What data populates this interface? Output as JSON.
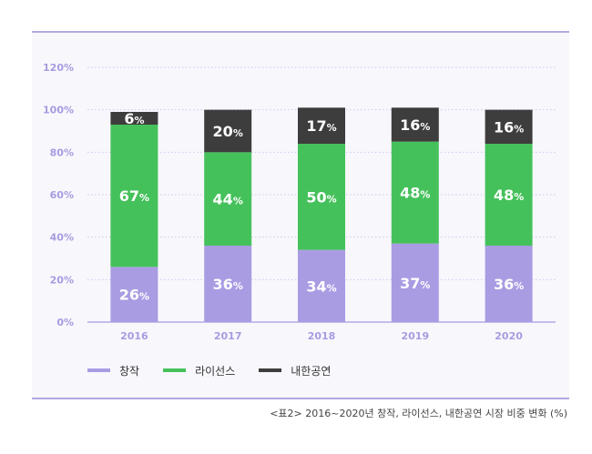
{
  "chart_data": {
    "type": "bar",
    "stacked": true,
    "categories": [
      "2016",
      "2017",
      "2018",
      "2019",
      "2020"
    ],
    "series": [
      {
        "name": "창작",
        "color": "#a99ce3",
        "values": [
          26,
          36,
          34,
          37,
          36
        ]
      },
      {
        "name": "라이선스",
        "color": "#45c15b",
        "values": [
          67,
          44,
          50,
          48,
          48
        ]
      },
      {
        "name": "내한공연",
        "color": "#3d3d3d",
        "values": [
          6,
          20,
          17,
          16,
          16
        ]
      }
    ],
    "data_labels": [
      [
        "26",
        "36",
        "34",
        "37",
        "36"
      ],
      [
        "67",
        "44",
        "50",
        "48",
        "48"
      ],
      [
        "6",
        "20",
        "17",
        "16",
        "16"
      ]
    ],
    "label_suffix": "%",
    "yticks": [
      "0%",
      "20%",
      "40%",
      "60%",
      "80%",
      "100%",
      "120%"
    ],
    "ylim": [
      0,
      120
    ],
    "grid": true,
    "legend_position": "bottom-left"
  },
  "caption": "<표2> 2016~2020년 창작, 라이선스, 내한공연 시장 비중 변화 (%)"
}
